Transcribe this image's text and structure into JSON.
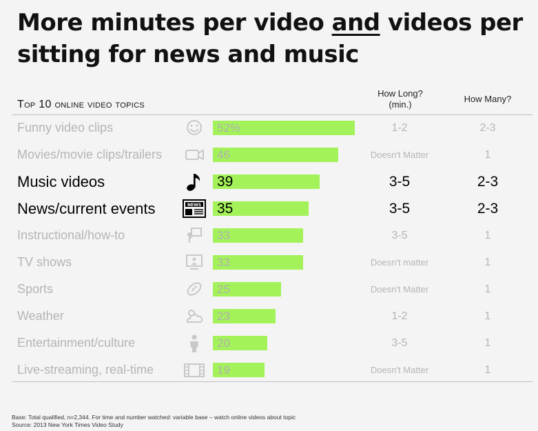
{
  "title": {
    "before": "More minutes per video ",
    "emph": "and",
    "after": " videos per sitting for news and music"
  },
  "headers": {
    "topics": "Top 10 online video topics",
    "how_long": "How Long? (min.)",
    "how_many": "How Many?"
  },
  "chart_data": {
    "type": "bar",
    "orientation": "horizontal",
    "title": "More minutes per video and videos per sitting for news and music",
    "categories": [
      "Funny video clips",
      "Movies/movie clips/trailers",
      "Music videos",
      "News/current events",
      "Instructional/how-to",
      "TV shows",
      "Sports",
      "Weather",
      "Entertainment/culture",
      "Live-streaming, real-time"
    ],
    "values": [
      52,
      46,
      39,
      35,
      33,
      33,
      25,
      23,
      20,
      19
    ],
    "value_labels": [
      "52%",
      "46",
      "39",
      "35",
      "33",
      "33",
      "25",
      "23",
      "20",
      "19"
    ],
    "xlim": [
      0,
      52
    ],
    "how_long": [
      "1-2",
      "Doesn't Matter",
      "3-5",
      "3-5",
      "3-5",
      "Doesn't matter",
      "Doesn't Matter",
      "1-2",
      "3-5",
      "Doesn't Matter"
    ],
    "how_many": [
      "2-3",
      "1",
      "2-3",
      "2-3",
      "1",
      "1",
      "1",
      "1",
      "1",
      "1"
    ],
    "highlighted": [
      "Music videos",
      "News/current events"
    ],
    "icons": [
      "smiley-icon",
      "video-camera-icon",
      "music-note-icon",
      "newspaper-icon",
      "instruction-icon",
      "tv-icon",
      "football-icon",
      "weather-icon",
      "person-icon",
      "film-strip-icon"
    ],
    "bar_color": "#a4f25a"
  },
  "footnotes": {
    "base": "Base: Total qualified, n=2,344. For time and number watched: variable base – watch online videos about topic",
    "source": "Source: 2013 New York Times Video Study"
  }
}
